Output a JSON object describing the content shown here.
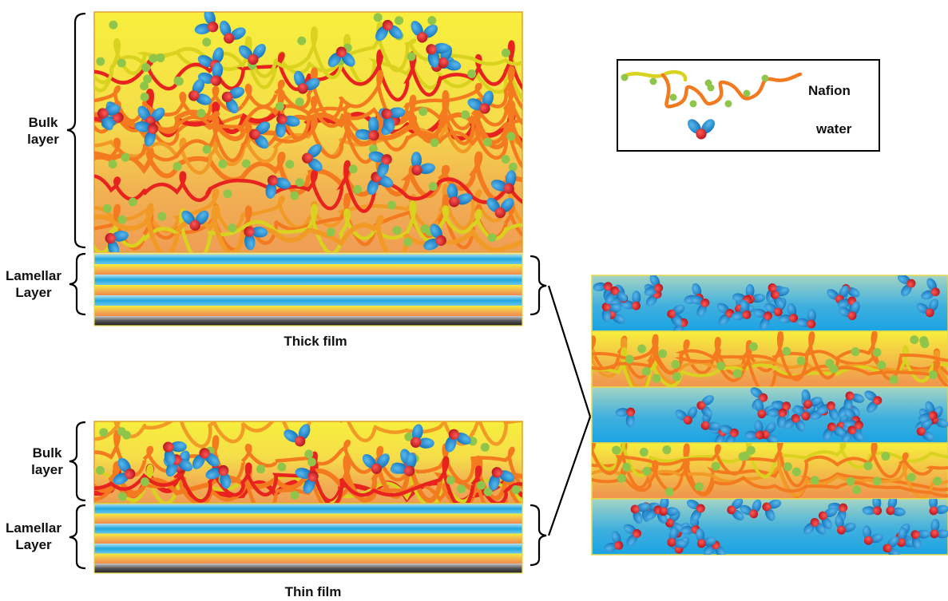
{
  "thick_film": {
    "bulk_label_line1": "Bulk",
    "bulk_label_line2": "layer",
    "lamellar_label_line1": "Lamellar",
    "lamellar_label_line2": "Layer",
    "caption": "Thick film"
  },
  "thin_film": {
    "bulk_label_line1": "Bulk",
    "bulk_label_line2": "layer",
    "lamellar_label_line1": "Lamellar",
    "lamellar_label_line2": "Layer",
    "caption": "Thin film"
  },
  "legend": {
    "nafion_label": "Nafion",
    "water_label": "water"
  },
  "colors": {
    "bulk_top": "#f7ef3c",
    "bulk_bottom": "#f0a24a",
    "polymer_orange": "#f47a1f",
    "polymer_red": "#e8231f",
    "polymer_yellow": "#d9d21f",
    "side_chain_green": "#8fc54b",
    "water_blue": "#2a8fd3",
    "water_red": "#d61f26",
    "lamella_blue": "#2aa6e0",
    "lamella_teal": "#9ed3c7",
    "substrate": "#444444"
  }
}
